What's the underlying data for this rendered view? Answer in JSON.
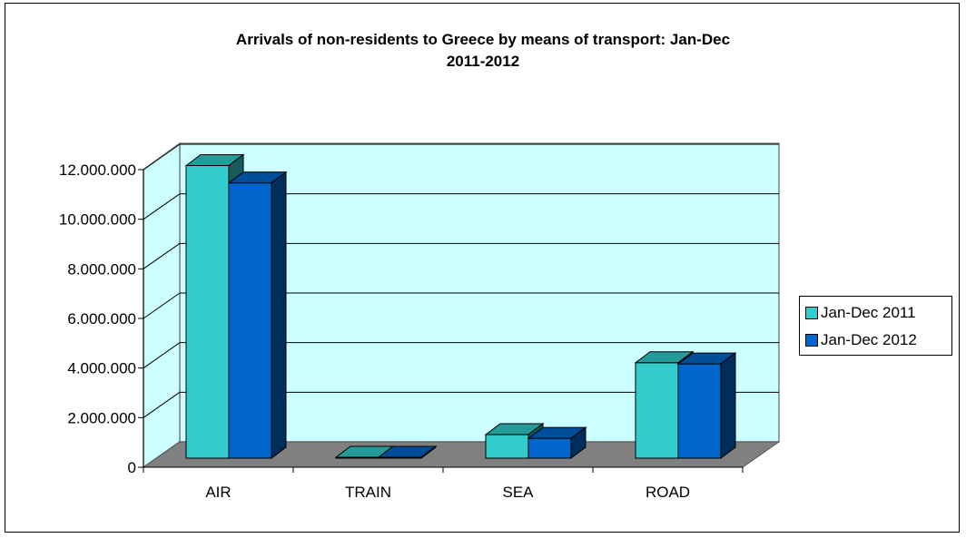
{
  "chart_data": {
    "type": "bar",
    "title_lines": [
      "Arrivals of non-residents to Greece by means of transport: Jan-Dec",
      "2011-2012"
    ],
    "categories": [
      "AIR",
      "TRAIN",
      "SEA",
      "ROAD"
    ],
    "series": [
      {
        "name": "Jan-Dec 2011",
        "values": [
          11800000,
          30000,
          950000,
          3850000
        ],
        "color": "#33cccc"
      },
      {
        "name": "Jan-Dec 2012",
        "values": [
          11100000,
          25000,
          800000,
          3800000
        ],
        "color": "#0066cc"
      }
    ],
    "yticks": [
      0,
      2000000,
      4000000,
      6000000,
      8000000,
      10000000,
      12000000
    ],
    "ytick_labels": [
      "0",
      "2.000.000",
      "4.000.000",
      "6.000.000",
      "8.000.000",
      "10.000.000",
      "12.000.000"
    ],
    "ylim": [
      0,
      12000000
    ],
    "grid": true,
    "legend_position": "right",
    "plot_background": "#ccffff",
    "floor_color": "#808080"
  }
}
